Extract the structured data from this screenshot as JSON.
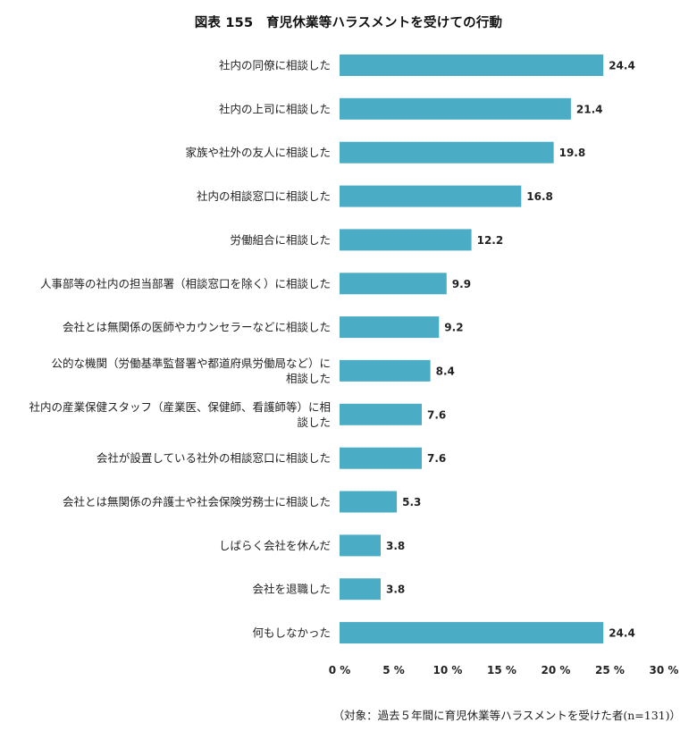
{
  "footnote": "（対象：過去５年間に育児休業等ハラスメントを受けた者(n=131)）",
  "chart_data": {
    "type": "bar",
    "orientation": "horizontal",
    "title": "図表 155　育児休業等ハラスメントを受けての行動",
    "xlabel": "",
    "ylabel": "",
    "xlim": [
      0,
      30
    ],
    "x_ticks": [
      "0 %",
      "5 %",
      "10 %",
      "15 %",
      "20 %",
      "25 %",
      "30 %"
    ],
    "x_tick_values": [
      0,
      5,
      10,
      15,
      20,
      25,
      30
    ],
    "grid": false,
    "bar_color": "#4bacc6",
    "categories": [
      [
        "社内の同僚に相談した"
      ],
      [
        "社内の上司に相談した"
      ],
      [
        "家族や社外の友人に相談した"
      ],
      [
        "社内の相談窓口に相談した"
      ],
      [
        "労働組合に相談した"
      ],
      [
        "人事部等の社内の担当部署（相談窓口を除く）に相談した"
      ],
      [
        "会社とは無関係の医師やカウンセラーなどに相談した"
      ],
      [
        "公的な機関（労働基準監督署や都道府県労働局など）に",
        "相談した"
      ],
      [
        "社内の産業保健スタッフ（産業医、保健師、看護師等）に相",
        "談した"
      ],
      [
        "会社が設置している社外の相談窓口に相談した"
      ],
      [
        "会社とは無関係の弁護士や社会保険労務士に相談した"
      ],
      [
        "しばらく会社を休んだ"
      ],
      [
        "会社を退職した"
      ],
      [
        "何もしなかった"
      ]
    ],
    "values": [
      24.4,
      21.4,
      19.8,
      16.8,
      12.2,
      9.9,
      9.2,
      8.4,
      7.6,
      7.6,
      5.3,
      3.8,
      3.8,
      24.4
    ],
    "value_labels": [
      "24.4",
      "21.4",
      "19.8",
      "16.8",
      "12.2",
      "9.9",
      "9.2",
      "8.4",
      "7.6",
      "7.6",
      "5.3",
      "3.8",
      "3.8",
      "24.4"
    ]
  }
}
